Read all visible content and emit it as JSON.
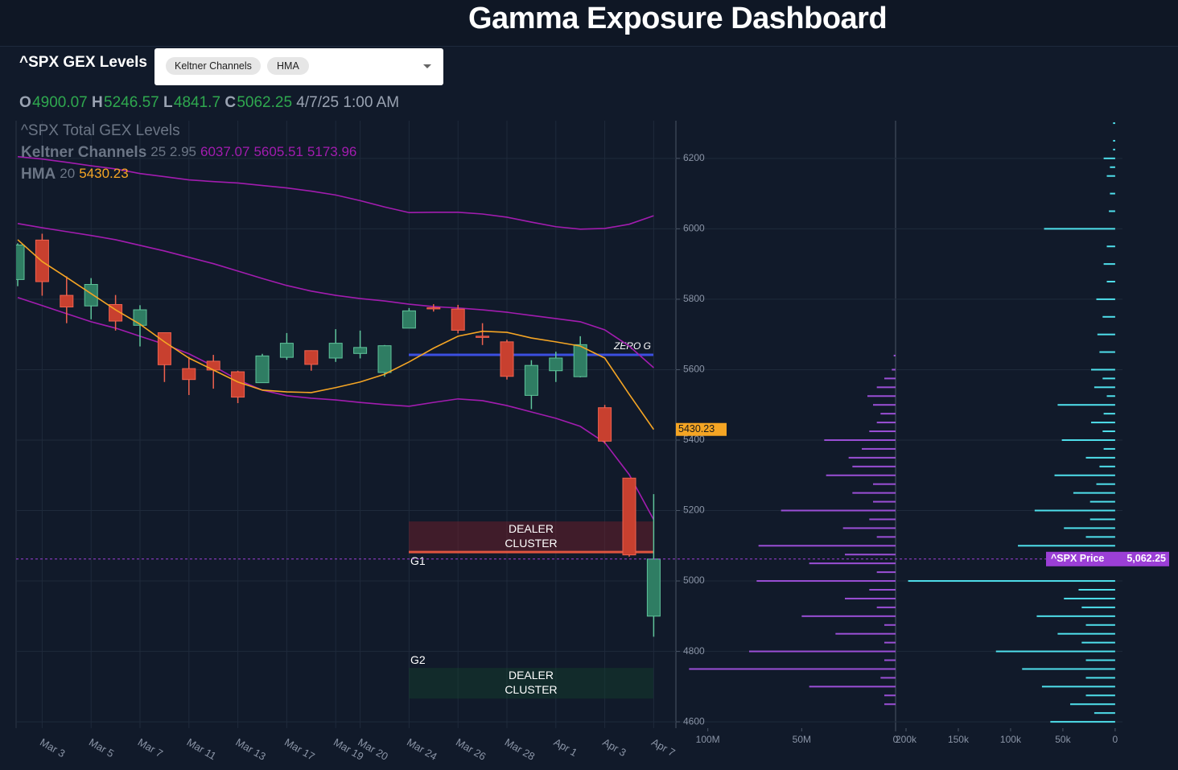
{
  "header": {
    "title": "Gamma Exposure Dashboard",
    "panel_title": "^SPX GEX Levels",
    "ohlc_labels": [
      "O",
      "H",
      "L",
      "C"
    ],
    "timestamp": "4/7/25 1:00 AM"
  },
  "chart_data": [
    {
      "type": "candlestick",
      "title": "^SPX Total GEX Levels",
      "categories": [
        null,
        "Mar 3",
        null,
        "Mar 5",
        null,
        "Mar 7",
        null,
        "Mar 11",
        null,
        "Mar 13",
        null,
        "Mar 17",
        null,
        "Mar 19",
        "Mar 20",
        null,
        "Mar 24",
        null,
        "Mar 26",
        null,
        "Mar 28",
        null,
        "Apr 1",
        null,
        "Apr 3",
        null,
        "Apr 7"
      ],
      "open": [
        5856,
        5968,
        5811,
        5781,
        5785,
        5726,
        5705,
        5603,
        5624,
        5594,
        5563,
        5635,
        5654,
        5633,
        5646,
        5592,
        5718,
        5776,
        5772,
        5695,
        5679,
        5527,
        5597,
        5580,
        5492,
        5292,
        4900.07
      ],
      "high": [
        5959,
        5986,
        5865,
        5860,
        5812,
        5783,
        5705,
        5636,
        5642,
        5597,
        5645,
        5704,
        5655,
        5715,
        5711,
        5670,
        5775,
        5786,
        5784,
        5732,
        5685,
        5627,
        5651,
        5695,
        5500,
        5292,
        5246.57
      ],
      "low": [
        5837,
        5810,
        5732,
        5743,
        5711,
        5666,
        5565,
        5528,
        5546,
        5505,
        5563,
        5628,
        5597,
        5622,
        5632,
        5580,
        5718,
        5765,
        5703,
        5670,
        5572,
        5488,
        5565,
        5578,
        5390,
        5069,
        4841.7
      ],
      "close": [
        5954,
        5850,
        5778,
        5842,
        5738,
        5770,
        5614,
        5572,
        5599,
        5522,
        5639,
        5675,
        5615,
        5675,
        5663,
        5668,
        5767,
        5775,
        5712,
        5693,
        5581,
        5612,
        5633,
        5671,
        5397,
        5074,
        5062.25
      ],
      "up_color": "#2f7d63",
      "down_color": "#c8402f",
      "series": [
        {
          "name": "Keltner Channels",
          "params": "25 2.95",
          "color": "#a21caf",
          "upper": [
            6205,
            6198,
            6189,
            6179,
            6170,
            6157,
            6148,
            6139,
            6134,
            6130,
            6123,
            6116,
            6107,
            6096,
            6080,
            6062,
            6046,
            6047,
            6047,
            6042,
            6033,
            6019,
            6006,
            5999,
            6001,
            6013,
            6037.07
          ],
          "middle": [
            6015,
            6003,
            5992,
            5981,
            5969,
            5953,
            5937,
            5919,
            5901,
            5880,
            5859,
            5839,
            5823,
            5811,
            5802,
            5795,
            5786,
            5779,
            5775,
            5770,
            5763,
            5754,
            5745,
            5736,
            5713,
            5667,
            5605.51
          ],
          "lower": [
            5805,
            5782,
            5759,
            5736,
            5718,
            5695,
            5672,
            5645,
            5610,
            5571,
            5542,
            5526,
            5519,
            5514,
            5507,
            5501,
            5496,
            5507,
            5517,
            5512,
            5498,
            5480,
            5462,
            5439,
            5393,
            5302,
            5173.96
          ]
        },
        {
          "name": "HMA",
          "params": "20",
          "color": "#f5a524",
          "values": [
            5969,
            5907,
            5862,
            5816,
            5770,
            5729,
            5679,
            5633,
            5599,
            5565,
            5542,
            5537,
            5535,
            5549,
            5565,
            5587,
            5622,
            5661,
            5695,
            5709,
            5706,
            5690,
            5679,
            5667,
            5633,
            5530,
            5430.23
          ]
        }
      ],
      "ylim": [
        4582,
        6307
      ],
      "yticks": [
        4600,
        4800,
        5000,
        5200,
        5400,
        5600,
        5800,
        6000,
        6200
      ],
      "grid": true,
      "zero_gamma": {
        "label": "ZERO G",
        "value": 5642,
        "color": "#3b4fe0"
      },
      "clusters": [
        {
          "lines": [
            "DEALER",
            "CLUSTER"
          ],
          "level": "G1",
          "top": 5169,
          "bottom": 5082,
          "color": "#7a1f2a",
          "line_color": "#e0553f"
        },
        {
          "lines": [
            "DEALER",
            "CLUSTER"
          ],
          "level": "G2",
          "top": 4753,
          "bottom": 4666,
          "color": "#14402c"
        }
      ],
      "price_line": {
        "name": "^SPX Price",
        "value": 5062.25,
        "label": "5,062.25",
        "color": "#9b3fd6"
      }
    },
    {
      "type": "hbar",
      "color": "#9b4fd6",
      "y": [
        5640,
        5600,
        5575,
        5550,
        5525,
        5500,
        5475,
        5450,
        5425,
        5400,
        5375,
        5350,
        5325,
        5300,
        5275,
        5250,
        5225,
        5200,
        5175,
        5150,
        5125,
        5100,
        5075,
        5050,
        5025,
        5000,
        4975,
        4950,
        4925,
        4900,
        4875,
        4850,
        4825,
        4800,
        4775,
        4750,
        4725,
        4700,
        4675,
        4650
      ],
      "values": [
        1,
        2,
        6,
        10,
        15,
        12,
        8,
        10,
        14,
        38,
        18,
        25,
        23,
        37,
        12,
        23,
        12,
        61,
        14,
        28,
        10,
        73,
        27,
        46,
        10,
        74,
        14,
        27,
        10,
        50,
        6,
        32,
        6,
        78,
        6,
        110,
        8,
        46,
        6,
        6
      ],
      "xlim": [
        117,
        0
      ],
      "xticks": [
        {
          "value": 100,
          "label": "100M"
        },
        {
          "value": 50,
          "label": "50M"
        },
        0
      ]
    },
    {
      "type": "hbar",
      "color": "#4fe0ec",
      "y": [
        6300,
        6250,
        6225,
        6200,
        6175,
        6150,
        6100,
        6050,
        6000,
        5950,
        5900,
        5850,
        5800,
        5750,
        5700,
        5650,
        5600,
        5575,
        5550,
        5525,
        5500,
        5475,
        5450,
        5425,
        5400,
        5375,
        5350,
        5325,
        5300,
        5275,
        5250,
        5225,
        5200,
        5175,
        5150,
        5125,
        5100,
        5075,
        5050,
        5000,
        4975,
        4950,
        4925,
        4900,
        4875,
        4850,
        4825,
        4800,
        4775,
        4750,
        4725,
        4700,
        4675,
        4650,
        4625,
        4600
      ],
      "values": [
        2,
        2,
        2,
        11,
        5,
        8,
        5,
        6,
        68,
        8,
        11,
        8,
        18,
        12,
        17,
        15,
        23,
        12,
        20,
        8,
        55,
        11,
        23,
        12,
        51,
        11,
        28,
        15,
        58,
        18,
        40,
        24,
        77,
        24,
        49,
        28,
        93,
        43,
        28,
        198,
        35,
        49,
        32,
        75,
        28,
        55,
        32,
        114,
        28,
        89,
        28,
        70,
        28,
        43,
        20,
        62
      ],
      "xlim": [
        210,
        -7
      ],
      "xticks": [
        {
          "value": 200,
          "label": "200k"
        },
        {
          "value": 150,
          "label": "150k"
        },
        {
          "value": 100,
          "label": "100k"
        },
        {
          "value": 50,
          "label": "50k"
        },
        0
      ]
    }
  ]
}
